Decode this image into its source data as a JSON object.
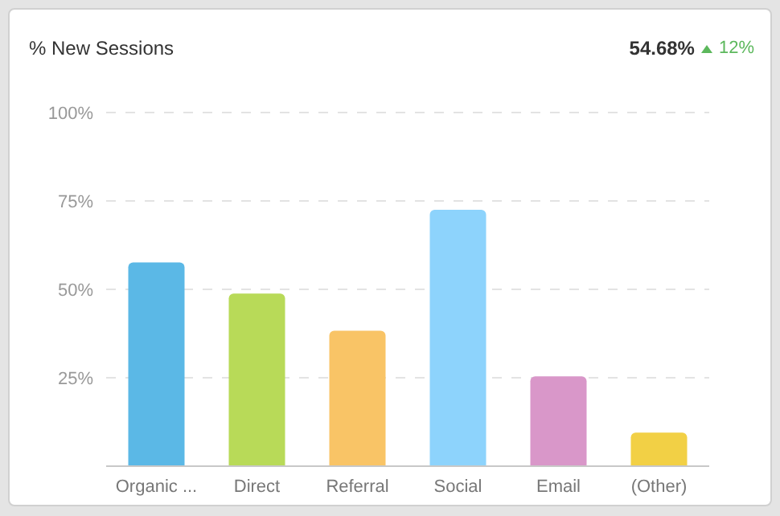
{
  "chart_data": {
    "type": "bar",
    "title": "% New Sessions",
    "annotations": [
      "54.68%",
      "12%"
    ],
    "categories": [
      "Organic ...",
      "Direct",
      "Referral",
      "Social",
      "Email",
      "(Other)"
    ],
    "values": [
      57.6,
      48.8,
      38.3,
      72.5,
      25.4,
      9.5
    ],
    "colors": [
      "#5bb8e6",
      "#b8da58",
      "#f9c466",
      "#8dd3fc",
      "#d997c9",
      "#f2d045"
    ],
    "ylim": [
      0,
      100
    ],
    "yticks": [
      {
        "value": 0,
        "label": null
      },
      {
        "value": 25,
        "label": "25%"
      },
      {
        "value": 50,
        "label": "50%"
      },
      {
        "value": 75,
        "label": "75%"
      },
      {
        "value": 100,
        "label": "100%"
      }
    ],
    "grid": "y"
  }
}
